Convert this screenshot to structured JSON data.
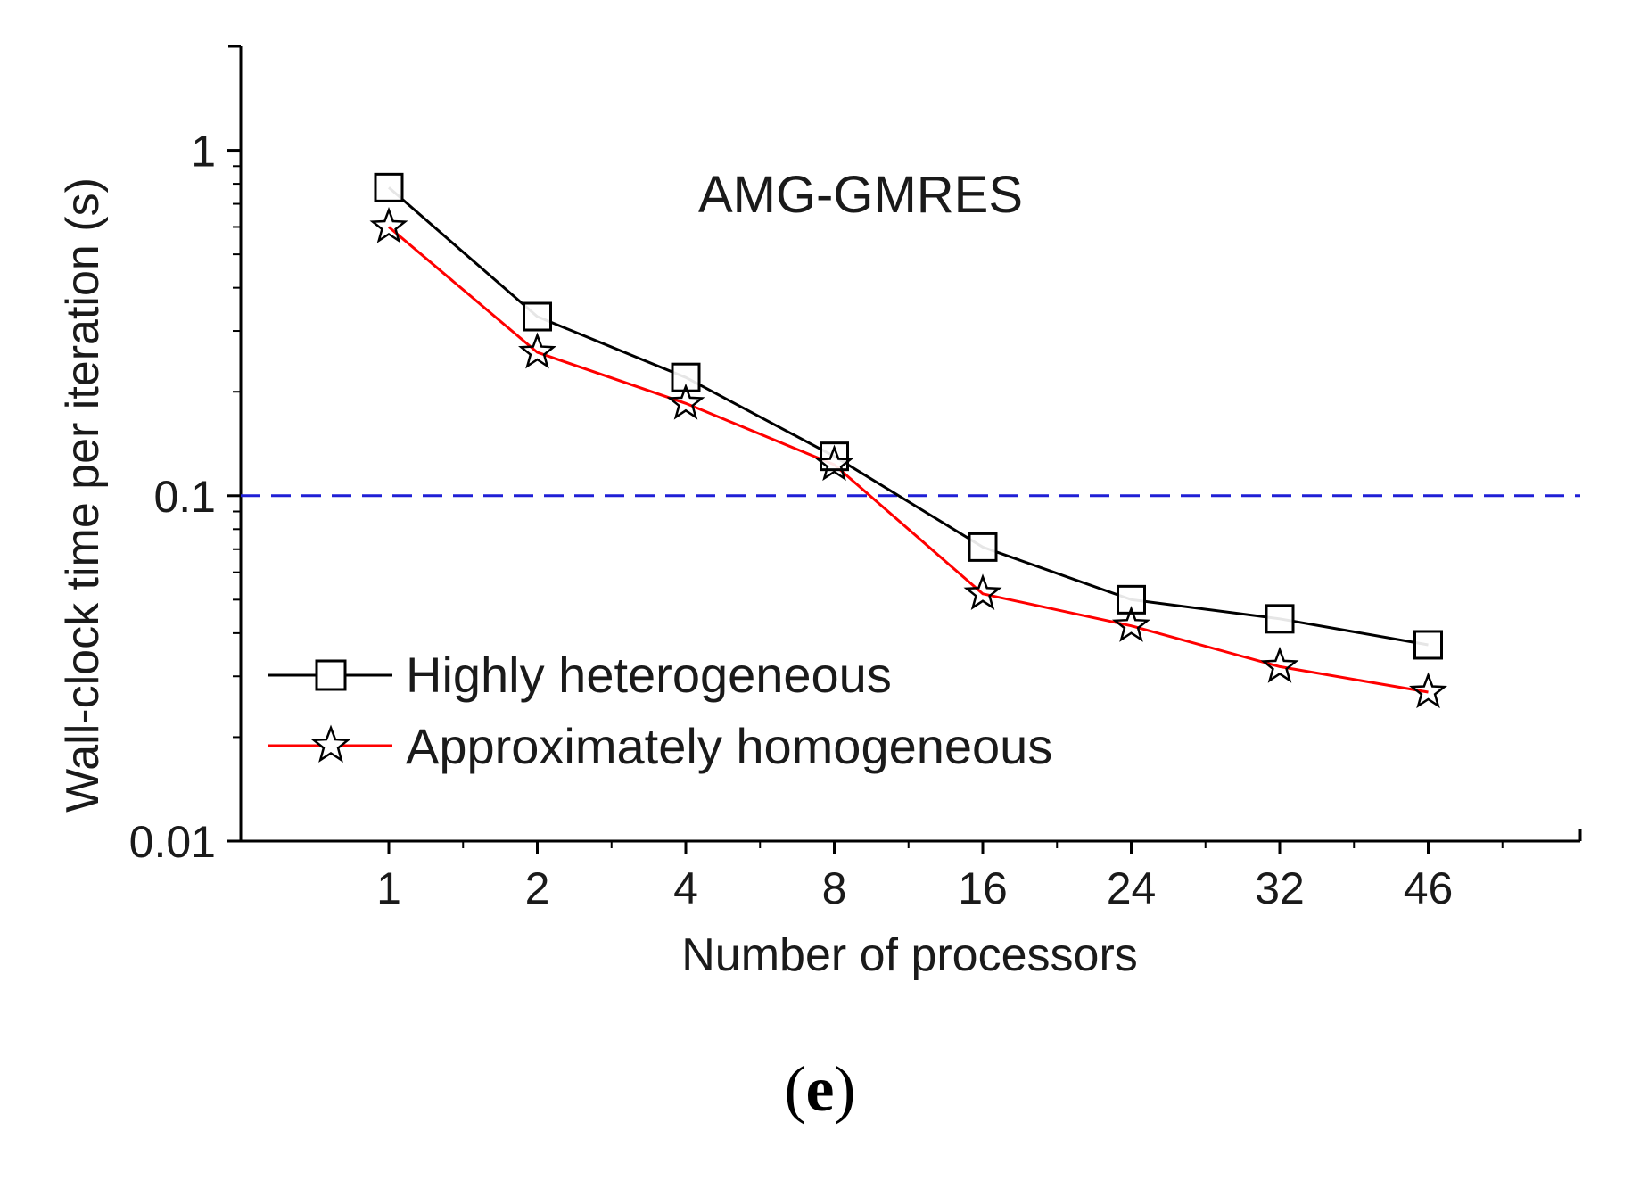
{
  "caption": {
    "open": "(",
    "letter": "e",
    "close": ")"
  },
  "chart_data": {
    "type": "line",
    "title": "AMG-GMRES",
    "xlabel": "Number of processors",
    "ylabel": "Wall-clock time per iteration (s)",
    "y_scale": "log",
    "ylim": [
      0.01,
      2
    ],
    "y_ticks": [
      1,
      0.1,
      0.01
    ],
    "y_tick_labels": [
      "1",
      "0.1",
      "0.01"
    ],
    "categories": [
      "1",
      "2",
      "4",
      "8",
      "16",
      "24",
      "32",
      "46"
    ],
    "series": [
      {
        "name": "Highly heterogeneous",
        "color": "#000000",
        "marker": "square",
        "values": [
          0.78,
          0.33,
          0.22,
          0.13,
          0.071,
          0.05,
          0.044,
          0.037
        ]
      },
      {
        "name": "Approximately homogeneous",
        "color": "#ff0000",
        "marker": "star",
        "values": [
          0.6,
          0.26,
          0.185,
          0.123,
          0.052,
          0.042,
          0.032,
          0.027
        ]
      }
    ],
    "reference_line": {
      "y": 0.1,
      "color": "#1f1fd6",
      "style": "dashed"
    },
    "legend_position": "bottom-left",
    "grid": false
  }
}
